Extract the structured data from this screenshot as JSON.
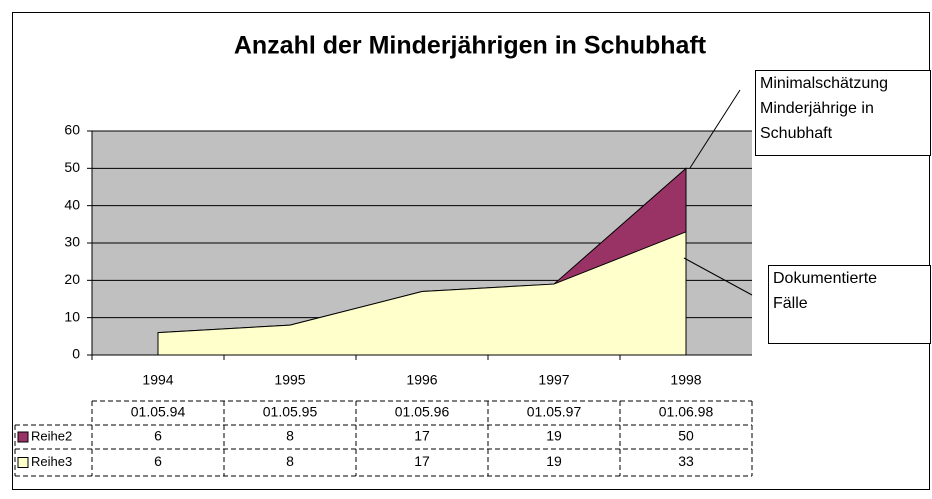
{
  "chart_data": {
    "type": "area",
    "title": "Anzahl der Minderjährigen in Schubhaft",
    "categories": [
      "1994",
      "1995",
      "1996",
      "1997",
      "1998"
    ],
    "table_dates": [
      "01.05.94",
      "01.05.95",
      "01.05.96",
      "01.05.97",
      "01.06.98"
    ],
    "series": [
      {
        "name": "Reihe2",
        "color": "#993366",
        "values": [
          6,
          8,
          17,
          19,
          50
        ]
      },
      {
        "name": "Reihe3",
        "color": "#ffffcc",
        "values": [
          6,
          8,
          17,
          19,
          33
        ]
      }
    ],
    "ylim": [
      0,
      60
    ],
    "yticks": [
      0,
      10,
      20,
      30,
      40,
      50,
      60
    ],
    "grid": true,
    "plot_background": "#c0c0c0",
    "annotations": [
      {
        "lines": [
          "Minimalschätzung",
          "Minderjährige in",
          "Schubhaft"
        ]
      },
      {
        "lines": [
          "Dokumentierte",
          "Fälle"
        ]
      }
    ]
  }
}
